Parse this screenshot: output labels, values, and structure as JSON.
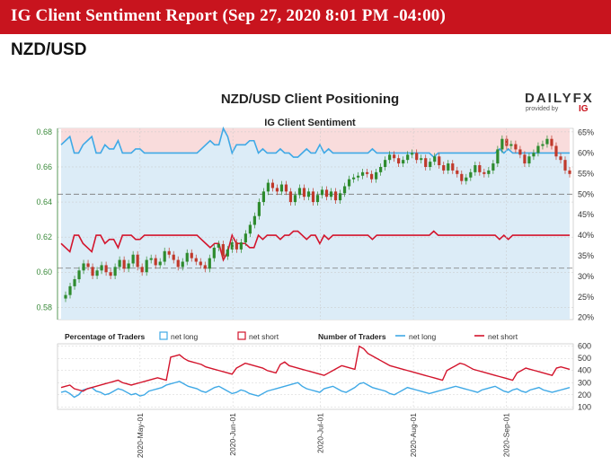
{
  "header": {
    "title": "IG Client Sentiment Report (Sep 27, 2020 8:01 PM -04:00)"
  },
  "pair": "NZD/USD",
  "logo": {
    "word": "DAILYFX",
    "provided_by": "provided by",
    "ig": "IG"
  },
  "colors": {
    "brand": "#c8141e",
    "net_long": "#3fa9e6",
    "net_short": "#d3142c",
    "long_fill": "#dcecf7",
    "short_fill": "#f9dcdc",
    "candle_up": "#2e8b2e",
    "candle_down": "#c0392b"
  },
  "chart_data": [
    {
      "type": "line",
      "title": "NZD/USD Client Positioning",
      "subtitle": "IG Client Sentiment",
      "left_axis": {
        "ticks": [
          0.58,
          0.6,
          0.62,
          0.64,
          0.66,
          0.68
        ],
        "labels": [
          "0.58",
          "0.60",
          "0.62",
          "0.64",
          "0.66",
          "0.68"
        ],
        "range": [
          0.573,
          0.682
        ]
      },
      "right_axis": {
        "ticks": [
          20,
          25,
          30,
          35,
          40,
          45,
          50,
          55,
          60,
          65
        ],
        "labels": [
          "20%",
          "25%",
          "30%",
          "35%",
          "40%",
          "45%",
          "50%",
          "55%",
          "60%",
          "65%"
        ],
        "range": [
          19.5,
          66
        ]
      },
      "reference_lines": [
        50,
        32
      ],
      "price_close": [
        0.585,
        0.587,
        0.592,
        0.596,
        0.601,
        0.605,
        0.603,
        0.598,
        0.601,
        0.604,
        0.6,
        0.598,
        0.603,
        0.607,
        0.602,
        0.605,
        0.61,
        0.603,
        0.6,
        0.607,
        0.608,
        0.604,
        0.606,
        0.612,
        0.61,
        0.607,
        0.603,
        0.606,
        0.611,
        0.608,
        0.606,
        0.604,
        0.602,
        0.608,
        0.614,
        0.616,
        0.609,
        0.613,
        0.617,
        0.613,
        0.617,
        0.622,
        0.627,
        0.632,
        0.64,
        0.646,
        0.651,
        0.648,
        0.646,
        0.65,
        0.646,
        0.64,
        0.644,
        0.648,
        0.643,
        0.646,
        0.64,
        0.644,
        0.647,
        0.643,
        0.646,
        0.641,
        0.645,
        0.649,
        0.653,
        0.654,
        0.655,
        0.657,
        0.656,
        0.653,
        0.657,
        0.66,
        0.664,
        0.667,
        0.665,
        0.662,
        0.664,
        0.667,
        0.668,
        0.664,
        0.665,
        0.66,
        0.663,
        0.666,
        0.661,
        0.658,
        0.662,
        0.658,
        0.656,
        0.652,
        0.654,
        0.657,
        0.661,
        0.657,
        0.656,
        0.658,
        0.662,
        0.67,
        0.676,
        0.672,
        0.673,
        0.67,
        0.667,
        0.662,
        0.666,
        0.668,
        0.672,
        0.673,
        0.676,
        0.672,
        0.666,
        0.664,
        0.658,
        0.656
      ],
      "series": [
        {
          "name": "net long",
          "values": [
            62,
            63,
            64,
            60,
            60,
            62,
            63,
            64,
            60,
            60,
            62,
            61,
            61,
            63,
            60,
            60,
            60,
            61,
            61,
            60,
            60,
            60,
            60,
            60,
            60,
            60,
            60,
            60,
            60,
            60,
            60,
            60,
            61,
            62,
            63,
            62,
            62,
            66,
            64,
            60,
            62,
            62,
            62,
            63,
            63,
            60,
            61,
            60,
            60,
            60,
            61,
            60,
            60,
            59,
            59,
            60,
            61,
            60,
            60,
            62,
            60,
            61,
            60,
            60,
            60,
            60,
            60,
            60,
            60,
            60,
            60,
            61,
            60,
            60,
            60,
            60,
            60,
            60,
            60,
            60,
            60,
            60,
            60,
            60,
            60,
            59,
            60,
            60,
            60,
            60,
            60,
            60,
            60,
            60,
            60,
            60,
            60,
            60,
            60,
            60,
            61,
            60,
            61,
            60,
            60,
            60,
            60,
            60,
            60,
            60,
            60,
            60,
            60,
            60,
            60,
            60,
            60
          ]
        },
        {
          "name": "net short",
          "values": [
            38,
            37,
            36,
            40,
            40,
            38,
            37,
            36,
            40,
            40,
            38,
            39,
            39,
            37,
            40,
            40,
            40,
            39,
            39,
            40,
            40,
            40,
            40,
            40,
            40,
            40,
            40,
            40,
            40,
            40,
            40,
            40,
            39,
            38,
            37,
            38,
            38,
            34,
            36,
            40,
            38,
            38,
            38,
            37,
            37,
            40,
            39,
            40,
            40,
            40,
            39,
            40,
            40,
            41,
            41,
            40,
            39,
            40,
            40,
            38,
            40,
            39,
            40,
            40,
            40,
            40,
            40,
            40,
            40,
            40,
            40,
            39,
            40,
            40,
            40,
            40,
            40,
            40,
            40,
            40,
            40,
            40,
            40,
            40,
            40,
            41,
            40,
            40,
            40,
            40,
            40,
            40,
            40,
            40,
            40,
            40,
            40,
            40,
            40,
            40,
            39,
            40,
            39,
            40,
            40,
            40,
            40,
            40,
            40,
            40,
            40,
            40,
            40,
            40,
            40,
            40,
            40
          ]
        }
      ]
    },
    {
      "type": "line",
      "legend": {
        "pct_label": "Percentage of Traders",
        "long_label": "net long",
        "short_label": "net short",
        "num_label": "Number of Traders",
        "num_long_label": "net long",
        "num_short_label": "net short"
      },
      "right_axis": {
        "ticks": [
          100,
          200,
          300,
          400,
          500,
          600
        ],
        "labels": [
          "100",
          "200",
          "300",
          "400",
          "500",
          "600"
        ],
        "range": [
          80,
          620
        ]
      },
      "x_labels": [
        "2020-May-01",
        "2020-Jun-01",
        "2020-Jul-01",
        "2020-Aug-01",
        "2020-Sep-01"
      ],
      "series": [
        {
          "name": "net long",
          "values": [
            220,
            230,
            210,
            180,
            200,
            240,
            250,
            260,
            230,
            220,
            200,
            210,
            230,
            250,
            240,
            220,
            200,
            210,
            190,
            200,
            230,
            240,
            250,
            260,
            280,
            290,
            300,
            310,
            290,
            270,
            260,
            250,
            230,
            220,
            240,
            260,
            270,
            250,
            230,
            210,
            220,
            240,
            230,
            210,
            200,
            190,
            210,
            230,
            240,
            250,
            260,
            270,
            280,
            290,
            300,
            270,
            250,
            240,
            230,
            220,
            250,
            260,
            270,
            250,
            230,
            220,
            240,
            260,
            290,
            300,
            280,
            260,
            250,
            240,
            230,
            210,
            200,
            220,
            240,
            260,
            250,
            240,
            230,
            220,
            210,
            220,
            230,
            240,
            250,
            260,
            270,
            260,
            250,
            240,
            230,
            220,
            240,
            250,
            260,
            270,
            250,
            230,
            220,
            240,
            250,
            230,
            220,
            240,
            250,
            260,
            240,
            230,
            220,
            230,
            240,
            250,
            260
          ]
        },
        {
          "name": "net short",
          "values": [
            260,
            270,
            280,
            250,
            240,
            230,
            250,
            260,
            270,
            280,
            290,
            300,
            310,
            320,
            300,
            290,
            280,
            290,
            300,
            310,
            320,
            330,
            340,
            330,
            320,
            510,
            520,
            530,
            500,
            480,
            470,
            460,
            450,
            430,
            420,
            410,
            400,
            390,
            380,
            370,
            420,
            440,
            460,
            450,
            440,
            430,
            420,
            400,
            390,
            380,
            450,
            470,
            440,
            430,
            420,
            410,
            400,
            390,
            380,
            370,
            360,
            380,
            400,
            420,
            440,
            430,
            420,
            410,
            600,
            580,
            540,
            520,
            500,
            480,
            460,
            440,
            430,
            420,
            410,
            400,
            390,
            380,
            370,
            360,
            350,
            340,
            330,
            320,
            400,
            420,
            440,
            460,
            450,
            430,
            410,
            400,
            390,
            380,
            370,
            360,
            350,
            340,
            330,
            320,
            380,
            400,
            420,
            410,
            400,
            390,
            380,
            370,
            360,
            420,
            430,
            420,
            410
          ]
        }
      ]
    }
  ]
}
